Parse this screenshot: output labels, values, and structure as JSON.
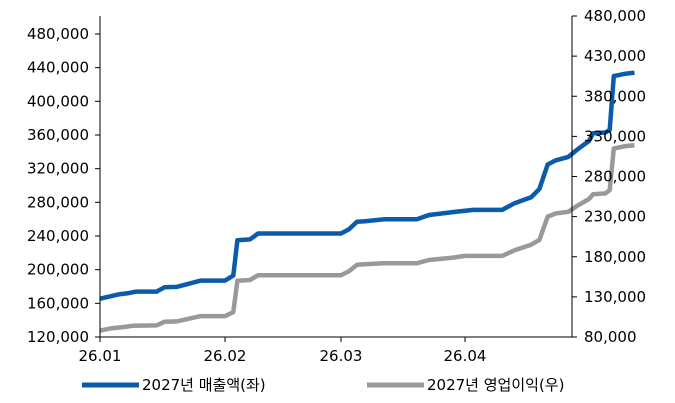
{
  "chart_data": {
    "type": "line",
    "grid": false,
    "legend_position": "bottom",
    "x_ticks": [
      "26.01",
      "26.02",
      "26.03",
      "26.04"
    ],
    "y_left": {
      "range": [
        120000,
        480000
      ],
      "ticks": [
        "120,000",
        "160,000",
        "200,000",
        "240,000",
        "280,000",
        "320,000",
        "360,000",
        "400,000",
        "440,000",
        "480,000"
      ]
    },
    "y_right": {
      "range": [
        80000,
        480000
      ],
      "ticks": [
        "80,000",
        "130,000",
        "180,000",
        "230,000",
        "280,000",
        "330,000",
        "380,000",
        "430,000",
        "480,000"
      ]
    },
    "series": [
      {
        "name": "2027년 매출액(좌)",
        "axis": "left",
        "color": "#0a5bab",
        "points": [
          [
            "2026-01-01",
            165500
          ],
          [
            "2026-01-06",
            171000
          ],
          [
            "2026-01-08",
            172000
          ],
          [
            "2026-01-10",
            174000
          ],
          [
            "2026-01-15",
            174000
          ],
          [
            "2026-01-17",
            179000
          ],
          [
            "2026-01-20",
            179500
          ],
          [
            "2026-01-26",
            187000
          ],
          [
            "2026-02-01",
            187000
          ],
          [
            "2026-02-03",
            193000
          ],
          [
            "2026-02-04",
            235000
          ],
          [
            "2026-02-07",
            236000
          ],
          [
            "2026-02-09",
            243000
          ],
          [
            "2026-02-20",
            243000
          ],
          [
            "2026-03-01",
            243000
          ],
          [
            "2026-03-03",
            248000
          ],
          [
            "2026-03-05",
            257000
          ],
          [
            "2026-03-07",
            257500
          ],
          [
            "2026-03-12",
            260000
          ],
          [
            "2026-03-20",
            260000
          ],
          [
            "2026-03-23",
            265000
          ],
          [
            "2026-03-30",
            269000
          ],
          [
            "2026-04-03",
            271000
          ],
          [
            "2026-04-10",
            271000
          ],
          [
            "2026-04-13",
            279000
          ],
          [
            "2026-04-17",
            286000
          ],
          [
            "2026-04-19",
            296000
          ],
          [
            "2026-04-21",
            325000
          ],
          [
            "2026-04-23",
            330000
          ],
          [
            "2026-04-26",
            334000
          ],
          [
            "2026-04-28",
            342000
          ],
          [
            "2026-05-01",
            353000
          ],
          [
            "2026-05-02",
            362000
          ],
          [
            "2026-05-05",
            363000
          ],
          [
            "2026-05-06",
            366000
          ],
          [
            "2026-05-07",
            430000
          ],
          [
            "2026-05-10",
            433000
          ],
          [
            "2026-05-12",
            434000
          ]
        ]
      },
      {
        "name": "2027년 영업이익(우)",
        "axis": "right",
        "color": "#999999",
        "points": [
          [
            "2026-01-01",
            88000
          ],
          [
            "2026-01-04",
            91000
          ],
          [
            "2026-01-07",
            92500
          ],
          [
            "2026-01-09",
            94000
          ],
          [
            "2026-01-15",
            94500
          ],
          [
            "2026-01-17",
            99000
          ],
          [
            "2026-01-20",
            99500
          ],
          [
            "2026-01-26",
            106000
          ],
          [
            "2026-02-01",
            106000
          ],
          [
            "2026-02-03",
            111000
          ],
          [
            "2026-02-04",
            150000
          ],
          [
            "2026-02-07",
            151000
          ],
          [
            "2026-02-09",
            157000
          ],
          [
            "2026-02-20",
            157000
          ],
          [
            "2026-03-01",
            157000
          ],
          [
            "2026-03-03",
            162000
          ],
          [
            "2026-03-05",
            170000
          ],
          [
            "2026-03-08",
            171000
          ],
          [
            "2026-03-12",
            172000
          ],
          [
            "2026-03-20",
            172000
          ],
          [
            "2026-03-23",
            176000
          ],
          [
            "2026-03-29",
            179000
          ],
          [
            "2026-04-01",
            181000
          ],
          [
            "2026-04-10",
            181000
          ],
          [
            "2026-04-13",
            188000
          ],
          [
            "2026-04-17",
            195000
          ],
          [
            "2026-04-19",
            201000
          ],
          [
            "2026-04-21",
            230000
          ],
          [
            "2026-04-23",
            234000
          ],
          [
            "2026-04-26",
            236000
          ],
          [
            "2026-04-28",
            243000
          ],
          [
            "2026-05-01",
            252000
          ],
          [
            "2026-05-02",
            258000
          ],
          [
            "2026-05-05",
            259000
          ],
          [
            "2026-05-06",
            263000
          ],
          [
            "2026-05-07",
            315000
          ],
          [
            "2026-05-10",
            318000
          ],
          [
            "2026-05-12",
            319000
          ]
        ]
      }
    ]
  }
}
